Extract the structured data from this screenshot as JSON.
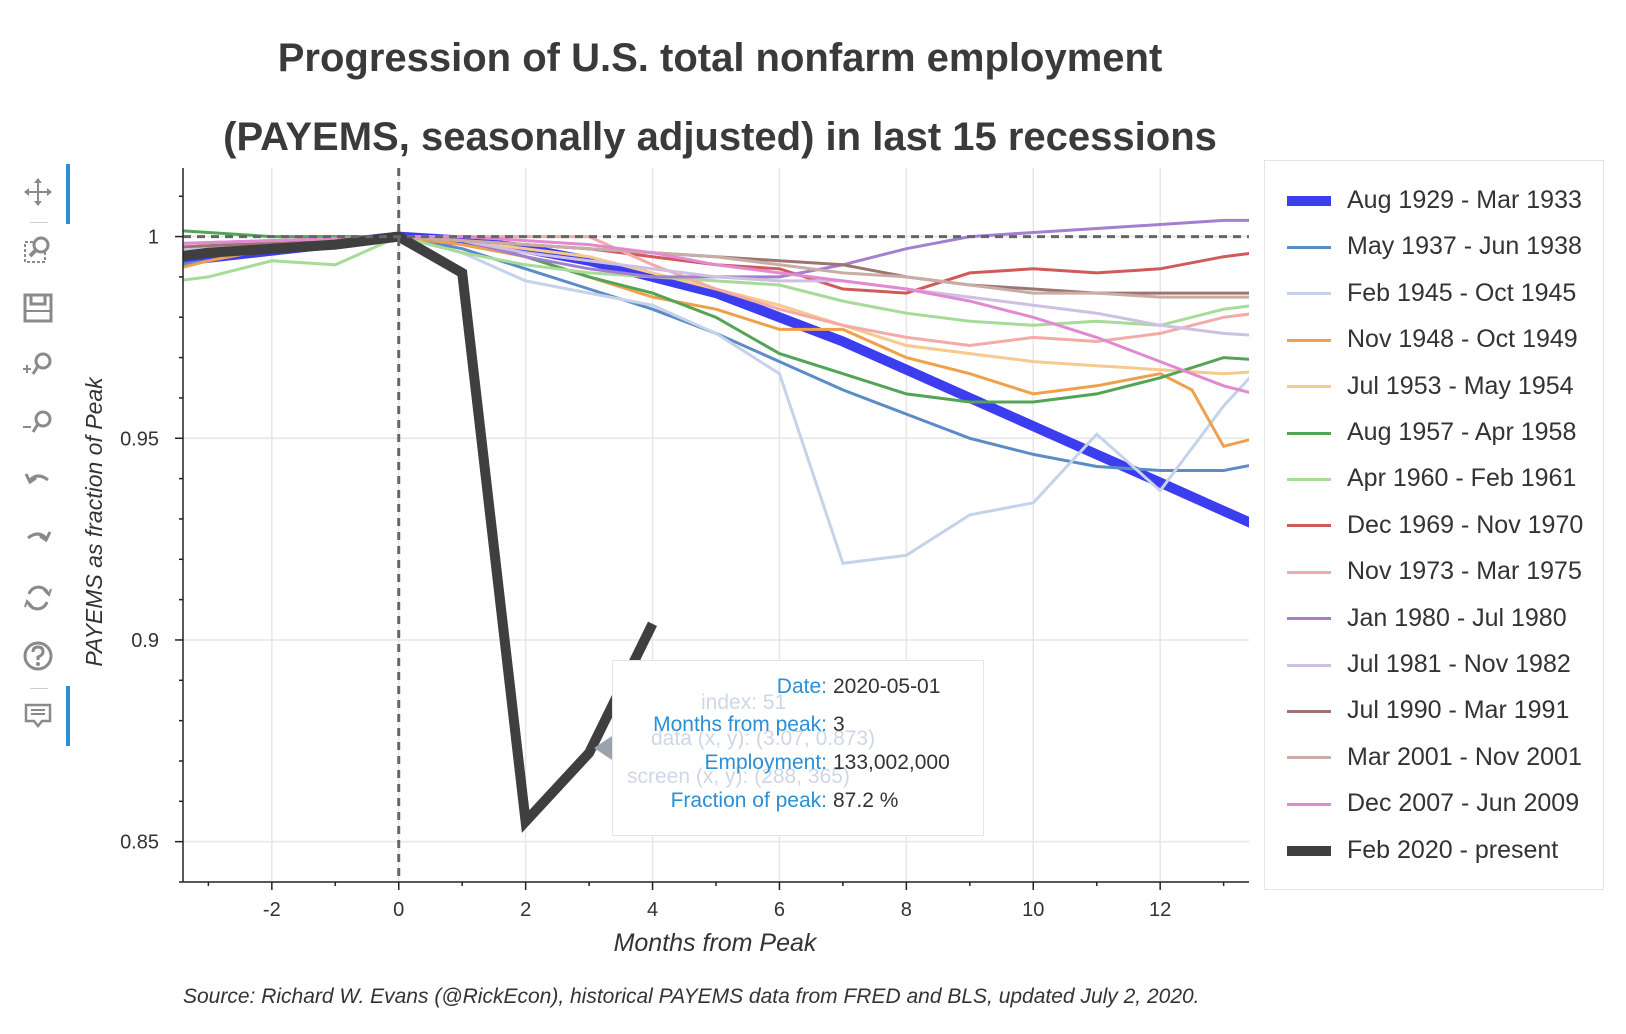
{
  "chart_data": {
    "type": "line",
    "title": [
      "Progression of U.S. total nonfarm employment",
      "(PAYEMS, seasonally adjusted) in last 15 recessions"
    ],
    "xlabel": "Months from Peak",
    "ylabel": "PAYEMS as fraction of Peak",
    "xlim": [
      -3.4,
      13.4
    ],
    "ylim": [
      0.84,
      1.017
    ],
    "x_ticks": [
      -2,
      0,
      2,
      4,
      6,
      8,
      10,
      12
    ],
    "x_tick_labels": [
      "-2",
      "0",
      "2",
      "4",
      "6",
      "8",
      "10",
      "12"
    ],
    "y_ticks": [
      0.85,
      0.9,
      0.95,
      1
    ],
    "y_tick_labels": [
      "0.85",
      "0.9",
      "0.95",
      "1"
    ],
    "grid": true,
    "legend_position": "right",
    "reference_lines": {
      "horizontal_y": 1,
      "vertical_x": 0
    },
    "series": [
      {
        "name": "Aug 1929 - Mar 1933",
        "color": "#3d3df0",
        "width": 10,
        "x": [
          -4,
          0,
          1,
          2,
          3,
          4,
          5,
          6,
          7,
          8,
          9,
          10,
          11,
          12,
          13,
          14
        ],
        "values": [
          0.993,
          1.0,
          0.999,
          0.997,
          0.994,
          0.99,
          0.986,
          0.98,
          0.974,
          0.967,
          0.96,
          0.953,
          0.946,
          0.939,
          0.932,
          0.925
        ]
      },
      {
        "name": "May 1937 - Jun 1938",
        "color": "#5b8cc7",
        "width": 3,
        "x": [
          -4,
          -3,
          -2,
          -1,
          0,
          1,
          2,
          3,
          4,
          5,
          6,
          7,
          8,
          9,
          10,
          11,
          12,
          13,
          14
        ],
        "values": [
          0.992,
          0.994,
          0.997,
          0.999,
          1.0,
          0.997,
          0.992,
          0.987,
          0.982,
          0.976,
          0.969,
          0.962,
          0.956,
          0.95,
          0.946,
          0.943,
          0.942,
          0.942,
          0.945
        ]
      },
      {
        "name": "Feb 1945 - Oct 1945",
        "color": "#c4d3ea",
        "width": 3,
        "x": [
          -4,
          0,
          1,
          2,
          3,
          4,
          5,
          6,
          7,
          8,
          9,
          10,
          11,
          12,
          13,
          14
        ],
        "values": [
          0.995,
          1.0,
          0.996,
          0.989,
          0.986,
          0.983,
          0.976,
          0.966,
          0.919,
          0.921,
          0.931,
          0.934,
          0.951,
          0.937,
          0.958,
          0.975
        ]
      },
      {
        "name": "Nov 1948 - Oct 1949",
        "color": "#f0a04b",
        "width": 3,
        "x": [
          -4,
          -3,
          -2,
          -1,
          0,
          1,
          2,
          3,
          4,
          5,
          6,
          7,
          8,
          9,
          10,
          11,
          12,
          12.5,
          13,
          14
        ],
        "values": [
          0.99,
          0.994,
          0.997,
          0.999,
          1.0,
          0.998,
          0.995,
          0.99,
          0.985,
          0.982,
          0.977,
          0.977,
          0.97,
          0.966,
          0.961,
          0.963,
          0.966,
          0.962,
          0.948,
          0.952
        ]
      },
      {
        "name": "Jul 1953 - May 1954",
        "color": "#f8c98e",
        "width": 3,
        "x": [
          -4,
          0,
          1,
          2,
          3,
          4,
          5,
          6,
          7,
          8,
          9,
          10,
          11,
          12,
          13,
          14
        ],
        "values": [
          0.996,
          1.0,
          0.999,
          0.997,
          0.995,
          0.991,
          0.987,
          0.983,
          0.978,
          0.973,
          0.971,
          0.969,
          0.968,
          0.967,
          0.966,
          0.967
        ]
      },
      {
        "name": "Aug 1957 - Apr 1958",
        "color": "#55a357",
        "width": 3,
        "x": [
          -4,
          -3,
          -2,
          0,
          1,
          2,
          3,
          4,
          5,
          6,
          7,
          8,
          9,
          10,
          11,
          12,
          13,
          14
        ],
        "values": [
          1.002,
          1.001,
          1.0,
          1.0,
          0.999,
          0.995,
          0.99,
          0.986,
          0.98,
          0.971,
          0.966,
          0.961,
          0.959,
          0.959,
          0.961,
          0.965,
          0.97,
          0.969
        ]
      },
      {
        "name": "Apr 1960 - Feb 1961",
        "color": "#a6dc98",
        "width": 3,
        "x": [
          -4,
          -3,
          -2,
          -1,
          0,
          1,
          2,
          3,
          4,
          5,
          6,
          7,
          8,
          9,
          10,
          11,
          12,
          13,
          14
        ],
        "values": [
          0.988,
          0.99,
          0.994,
          0.993,
          1.0,
          0.996,
          0.993,
          0.991,
          0.99,
          0.989,
          0.988,
          0.984,
          0.981,
          0.979,
          0.978,
          0.979,
          0.978,
          0.982,
          0.984
        ]
      },
      {
        "name": "Dec 1969 - Nov 1970",
        "color": "#d05a5a",
        "width": 3,
        "x": [
          -4,
          0,
          1,
          2,
          3,
          4,
          5,
          6,
          7,
          8,
          9,
          10,
          11,
          12,
          13,
          14
        ],
        "values": [
          0.995,
          1.0,
          0.999,
          0.998,
          0.997,
          0.995,
          0.993,
          0.992,
          0.987,
          0.986,
          0.991,
          0.992,
          0.991,
          0.992,
          0.995,
          0.997
        ]
      },
      {
        "name": "Nov 1973 - Mar 1975",
        "color": "#f4aaa6",
        "width": 3,
        "x": [
          -4,
          0,
          1,
          2,
          3,
          4,
          5,
          6,
          7,
          8,
          9,
          10,
          11,
          12,
          13,
          14
        ],
        "values": [
          0.995,
          1.0,
          1.0,
          1.0,
          1.0,
          0.993,
          0.987,
          0.982,
          0.978,
          0.975,
          0.973,
          0.975,
          0.974,
          0.976,
          0.98,
          0.982
        ]
      },
      {
        "name": "Jan 1980 - Jul 1980",
        "color": "#a57fcf",
        "width": 3,
        "x": [
          -4,
          0,
          1,
          2,
          3,
          4,
          5,
          6,
          7,
          8,
          9,
          10,
          11,
          12,
          13,
          14
        ],
        "values": [
          0.996,
          1.0,
          0.999,
          0.995,
          0.992,
          0.99,
          0.99,
          0.99,
          0.993,
          0.997,
          1.0,
          1.001,
          1.002,
          1.003,
          1.004,
          1.004
        ]
      },
      {
        "name": "Jul 1981 - Nov 1982",
        "color": "#cdc0e2",
        "width": 3,
        "x": [
          -4,
          0,
          1,
          2,
          3,
          4,
          5,
          6,
          7,
          8,
          9,
          10,
          11,
          12,
          13,
          14
        ],
        "values": [
          0.996,
          1.0,
          0.999,
          0.996,
          0.994,
          0.992,
          0.99,
          0.989,
          0.989,
          0.987,
          0.985,
          0.983,
          0.981,
          0.978,
          0.976,
          0.975
        ]
      },
      {
        "name": "Jul 1990 - Mar 1991",
        "color": "#9e7472",
        "width": 3,
        "x": [
          -4,
          0,
          1,
          2,
          3,
          4,
          5,
          6,
          7,
          8,
          9,
          10,
          11,
          12,
          13,
          14
        ],
        "values": [
          0.997,
          1.0,
          0.999,
          0.998,
          0.997,
          0.996,
          0.995,
          0.994,
          0.993,
          0.99,
          0.988,
          0.987,
          0.986,
          0.986,
          0.986,
          0.986
        ]
      },
      {
        "name": "Mar 2001 - Nov 2001",
        "color": "#c9ada5",
        "width": 3,
        "x": [
          -4,
          0,
          1,
          2,
          3,
          4,
          5,
          6,
          7,
          8,
          9,
          10,
          11,
          12,
          13,
          14
        ],
        "values": [
          0.998,
          1.0,
          0.999,
          0.998,
          0.997,
          0.996,
          0.995,
          0.993,
          0.991,
          0.99,
          0.988,
          0.986,
          0.986,
          0.985,
          0.985,
          0.985
        ]
      },
      {
        "name": "Dec 2007 - Jun 2009",
        "color": "#e28ad1",
        "width": 3,
        "x": [
          -4,
          0,
          1,
          2,
          3,
          4,
          5,
          6,
          7,
          8,
          9,
          10,
          11,
          12,
          13,
          14
        ],
        "values": [
          0.998,
          1.0,
          1.0,
          0.999,
          0.998,
          0.996,
          0.993,
          0.991,
          0.989,
          0.987,
          0.984,
          0.98,
          0.975,
          0.969,
          0.963,
          0.959
        ]
      },
      {
        "name": "Feb 2020 - present",
        "color": "#3f3f3f",
        "width": 10,
        "x": [
          -4,
          -3,
          -2,
          -1,
          0,
          1,
          2,
          3,
          4
        ],
        "values": [
          0.994,
          0.996,
          0.997,
          0.998,
          1.0,
          0.991,
          0.855,
          0.872,
          0.904
        ]
      }
    ],
    "tooltip": {
      "rows": [
        {
          "key": "Date:",
          "value": "2020-05-01"
        },
        {
          "key": "Months from peak:",
          "value": "3"
        },
        {
          "key": "Employment:",
          "value": "133,002,000"
        },
        {
          "key": "Fraction of peak:",
          "value": "87.2 %"
        }
      ],
      "ghost_rows": [
        "index: 51",
        "data (x, y): (3.07, 0.873)",
        "screen (x, y): (288, 365)"
      ]
    },
    "source": "Source: Richard W. Evans (@RickEcon), historical PAYEMS data from FRED and BLS, updated July 2, 2020."
  },
  "toolbar": {
    "tools": [
      "pan-icon",
      "box-zoom-icon",
      "save-icon",
      "zoom-in-icon",
      "zoom-out-icon",
      "undo-icon",
      "redo-icon",
      "reset-icon",
      "help-icon",
      "hover-icon"
    ]
  }
}
